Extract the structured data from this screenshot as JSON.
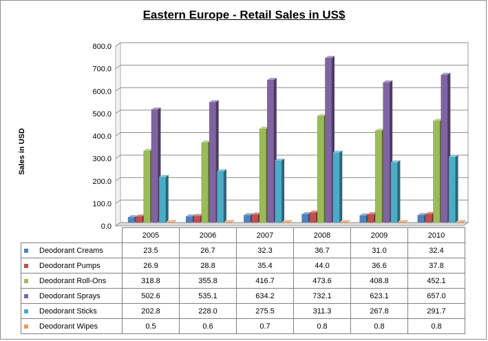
{
  "chart_data": {
    "type": "bar",
    "title": "Eastern Europe - Retail Sales in US$",
    "ylabel": "Sales in USD",
    "categories": [
      "2005",
      "2006",
      "2007",
      "2008",
      "2009",
      "2010"
    ],
    "ylim": [
      0,
      800
    ],
    "y_ticks": [
      "0.0",
      "100.0",
      "200.0",
      "300.0",
      "400.0",
      "500.0",
      "600.0",
      "700.0",
      "800.0"
    ],
    "grid": true,
    "legend": "data-table-below",
    "series": [
      {
        "name": "Deodorant Creams",
        "color": "#4f81bd",
        "values": [
          23.5,
          26.7,
          32.3,
          36.7,
          31.0,
          32.4
        ],
        "labels": [
          "23.5",
          "26.7",
          "32.3",
          "36.7",
          "31.0",
          "32.4"
        ]
      },
      {
        "name": "Deodorant Pumps",
        "color": "#c0504d",
        "values": [
          26.9,
          28.8,
          35.4,
          44.0,
          36.6,
          37.8
        ],
        "labels": [
          "26.9",
          "28.8",
          "35.4",
          "44.0",
          "36.6",
          "37.8"
        ]
      },
      {
        "name": "Deodorant Roll-Ons",
        "color": "#9bbb59",
        "values": [
          318.8,
          355.8,
          416.7,
          473.6,
          408.8,
          452.1
        ],
        "labels": [
          "318.8",
          "355.8",
          "416.7",
          "473.6",
          "408.8",
          "452.1"
        ]
      },
      {
        "name": "Deodorant Sprays",
        "color": "#8064a2",
        "values": [
          502.6,
          535.1,
          634.2,
          732.1,
          623.1,
          657.0
        ],
        "labels": [
          "502.6",
          "535.1",
          "634.2",
          "732.1",
          "623.1",
          "657.0"
        ]
      },
      {
        "name": "Deodorant Sticks",
        "color": "#4bacc6",
        "values": [
          202.8,
          228.0,
          275.5,
          311.3,
          267.8,
          291.7
        ],
        "labels": [
          "202.8",
          "228.0",
          "275.5",
          "311.3",
          "267.8",
          "291.7"
        ]
      },
      {
        "name": "Deodorant Wipes",
        "color": "#f79646",
        "values": [
          0.5,
          0.6,
          0.7,
          0.8,
          0.8,
          0.8
        ],
        "labels": [
          "0.5",
          "0.6",
          "0.7",
          "0.8",
          "0.8",
          "0.8"
        ]
      }
    ]
  }
}
